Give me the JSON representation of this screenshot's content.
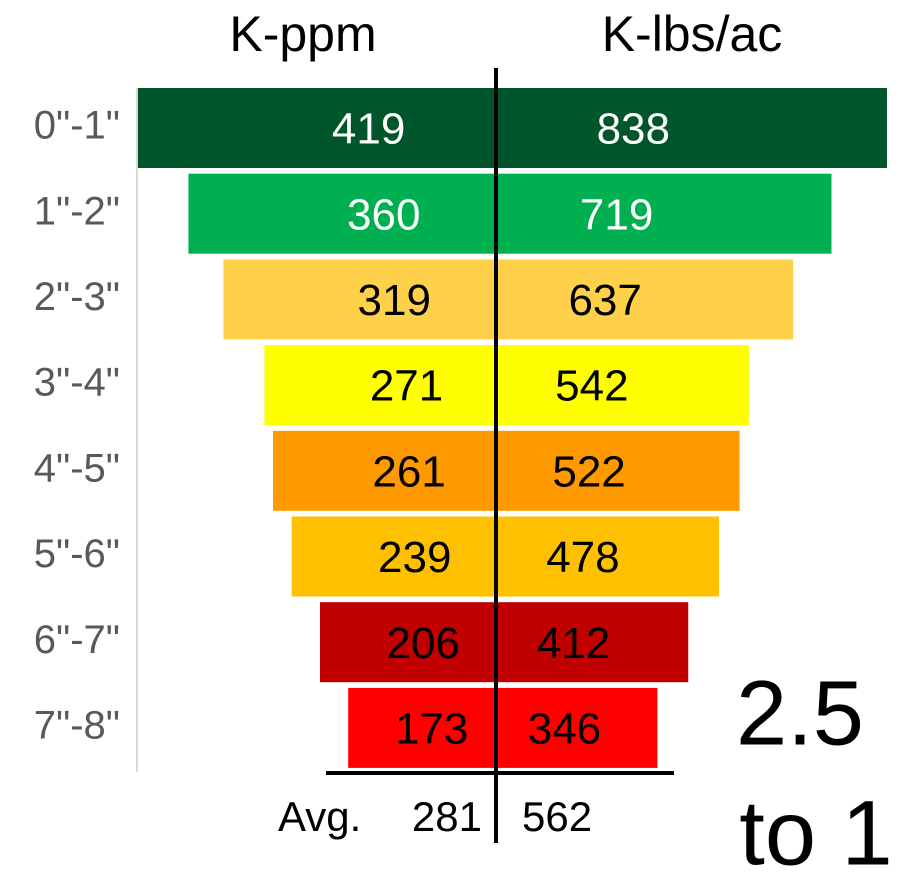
{
  "chart_data": {
    "type": "butterfly",
    "categories": [
      "0\"-1\"",
      "1\"-2\"",
      "2\"-3\"",
      "3\"-4\"",
      "4\"-5\"",
      "5\"-6\"",
      "6\"-7\"",
      "7\"-8\""
    ],
    "colors": [
      "#00562a",
      "#00b050",
      "#ffd14a",
      "#ffff00",
      "#ff9900",
      "#ffc000",
      "#c00000",
      "#ff0000"
    ],
    "label_colors": [
      "#ffffff",
      "#ffffff",
      "#000000",
      "#000000",
      "#000000",
      "#000000",
      "#000000",
      "#000000"
    ],
    "series": [
      {
        "name": "K-ppm",
        "values": [
          419,
          360,
          319,
          271,
          261,
          239,
          206,
          173
        ]
      },
      {
        "name": "K-lbs/ac",
        "values": [
          838,
          719,
          637,
          542,
          522,
          478,
          412,
          346
        ]
      }
    ],
    "average": {
      "label": "Avg.",
      "values": [
        281,
        562
      ]
    },
    "annotation": [
      "2.5",
      "to 1"
    ]
  }
}
